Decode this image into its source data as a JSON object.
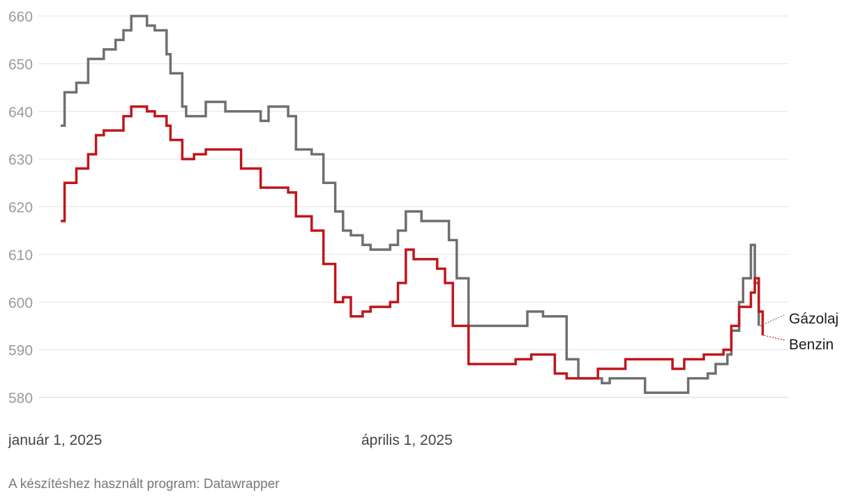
{
  "chart_data": {
    "type": "line",
    "step": true,
    "x_start": "2025-01-01",
    "x_end": "2025-06-24",
    "ylim": [
      580,
      660
    ],
    "yticks": [
      580,
      590,
      600,
      610,
      620,
      630,
      640,
      650,
      660
    ],
    "xtick_labels": [
      {
        "date": "2025-01-01",
        "label": "január 1, 2025"
      },
      {
        "date": "2025-04-01",
        "label": "április 1, 2025"
      }
    ],
    "grid": true,
    "series": [
      {
        "name": "Gázolaj",
        "color": "#6f6f6f",
        "points": [
          [
            "2025-01-01",
            637
          ],
          [
            "2025-01-02",
            644
          ],
          [
            "2025-01-05",
            646
          ],
          [
            "2025-01-08",
            651
          ],
          [
            "2025-01-12",
            653
          ],
          [
            "2025-01-15",
            655
          ],
          [
            "2025-01-17",
            657
          ],
          [
            "2025-01-19",
            660
          ],
          [
            "2025-01-23",
            658
          ],
          [
            "2025-01-25",
            657
          ],
          [
            "2025-01-28",
            652
          ],
          [
            "2025-01-29",
            648
          ],
          [
            "2025-02-01",
            641
          ],
          [
            "2025-02-02",
            639
          ],
          [
            "2025-02-07",
            642
          ],
          [
            "2025-02-12",
            640
          ],
          [
            "2025-02-21",
            638
          ],
          [
            "2025-02-23",
            641
          ],
          [
            "2025-02-28",
            639
          ],
          [
            "2025-03-02",
            632
          ],
          [
            "2025-03-06",
            631
          ],
          [
            "2025-03-09",
            625
          ],
          [
            "2025-03-12",
            619
          ],
          [
            "2025-03-14",
            615
          ],
          [
            "2025-03-16",
            614
          ],
          [
            "2025-03-19",
            612
          ],
          [
            "2025-03-21",
            611
          ],
          [
            "2025-03-26",
            612
          ],
          [
            "2025-03-28",
            615
          ],
          [
            "2025-03-30",
            619
          ],
          [
            "2025-04-03",
            617
          ],
          [
            "2025-04-10",
            613
          ],
          [
            "2025-04-12",
            605
          ],
          [
            "2025-04-15",
            595
          ],
          [
            "2025-04-30",
            598
          ],
          [
            "2025-05-04",
            597
          ],
          [
            "2025-05-10",
            588
          ],
          [
            "2025-05-13",
            584
          ],
          [
            "2025-05-19",
            583
          ],
          [
            "2025-05-21",
            584
          ],
          [
            "2025-05-30",
            581
          ],
          [
            "2025-06-10",
            584
          ],
          [
            "2025-06-15",
            585
          ],
          [
            "2025-06-17",
            587
          ],
          [
            "2025-06-20",
            589
          ],
          [
            "2025-06-21",
            594
          ],
          [
            "2025-06-23",
            600
          ],
          [
            "2025-06-24",
            605
          ],
          [
            "2025-06-26",
            612
          ],
          [
            "2025-06-27",
            604
          ],
          [
            "2025-06-28",
            595
          ]
        ]
      },
      {
        "name": "Benzin",
        "color": "#c0161b",
        "points": [
          [
            "2025-01-01",
            617
          ],
          [
            "2025-01-02",
            625
          ],
          [
            "2025-01-05",
            628
          ],
          [
            "2025-01-08",
            631
          ],
          [
            "2025-01-10",
            635
          ],
          [
            "2025-01-12",
            636
          ],
          [
            "2025-01-17",
            639
          ],
          [
            "2025-01-19",
            641
          ],
          [
            "2025-01-23",
            640
          ],
          [
            "2025-01-25",
            639
          ],
          [
            "2025-01-28",
            637
          ],
          [
            "2025-01-29",
            634
          ],
          [
            "2025-02-01",
            630
          ],
          [
            "2025-02-04",
            631
          ],
          [
            "2025-02-07",
            632
          ],
          [
            "2025-02-16",
            628
          ],
          [
            "2025-02-21",
            624
          ],
          [
            "2025-02-28",
            623
          ],
          [
            "2025-03-02",
            618
          ],
          [
            "2025-03-06",
            615
          ],
          [
            "2025-03-09",
            608
          ],
          [
            "2025-03-12",
            600
          ],
          [
            "2025-03-14",
            601
          ],
          [
            "2025-03-16",
            597
          ],
          [
            "2025-03-19",
            598
          ],
          [
            "2025-03-21",
            599
          ],
          [
            "2025-03-26",
            600
          ],
          [
            "2025-03-28",
            604
          ],
          [
            "2025-03-30",
            611
          ],
          [
            "2025-04-01",
            609
          ],
          [
            "2025-04-07",
            607
          ],
          [
            "2025-04-09",
            604
          ],
          [
            "2025-04-11",
            595
          ],
          [
            "2025-04-15",
            587
          ],
          [
            "2025-04-27",
            588
          ],
          [
            "2025-05-01",
            589
          ],
          [
            "2025-05-07",
            585
          ],
          [
            "2025-05-10",
            584
          ],
          [
            "2025-05-18",
            586
          ],
          [
            "2025-05-25",
            588
          ],
          [
            "2025-06-06",
            586
          ],
          [
            "2025-06-09",
            588
          ],
          [
            "2025-06-14",
            589
          ],
          [
            "2025-06-19",
            590
          ],
          [
            "2025-06-21",
            595
          ],
          [
            "2025-06-23",
            599
          ],
          [
            "2025-06-26",
            602
          ],
          [
            "2025-06-27",
            605
          ],
          [
            "2025-06-28",
            598
          ],
          [
            "2025-06-29",
            593
          ]
        ]
      }
    ]
  },
  "footer": "A készítéshez használt program: Datawrapper"
}
